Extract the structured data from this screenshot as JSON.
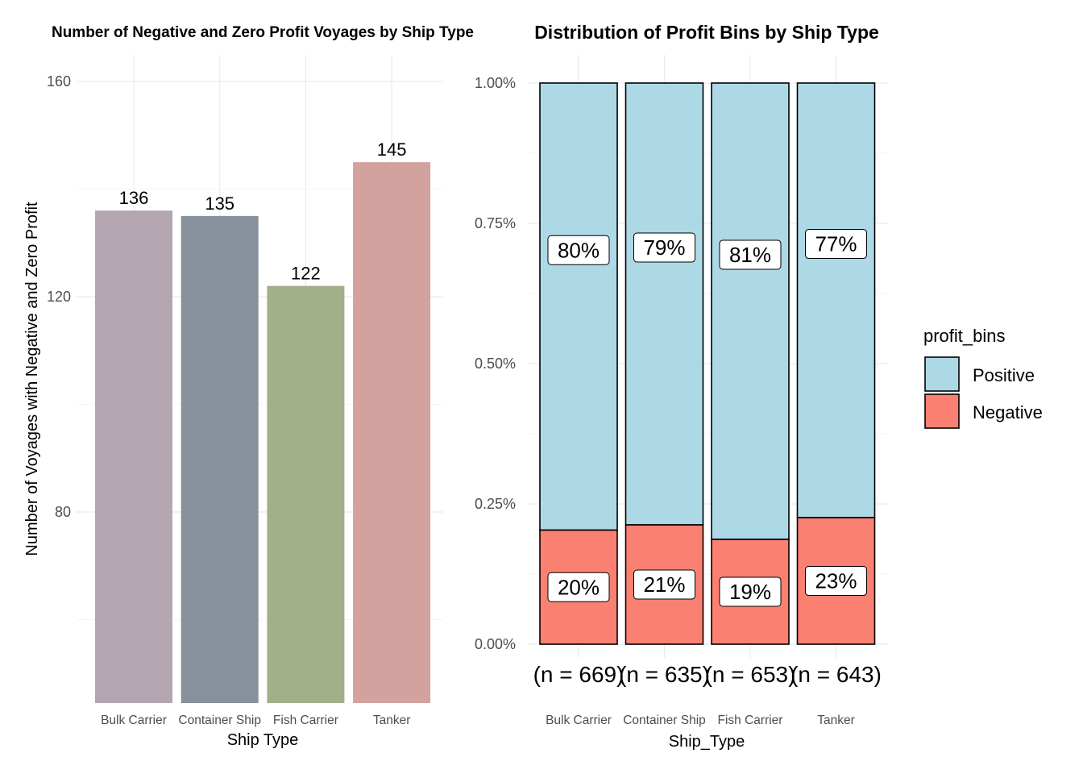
{
  "chart_data": [
    {
      "type": "bar",
      "title": "Number of Negative and Zero Profit Voyages by Ship Type",
      "xlabel": "Ship Type",
      "ylabel": "Number of Voyages with Negative and Zero Profit",
      "categories": [
        "Bulk Carrier",
        "Container Ship",
        "Fish Carrier",
        "Tanker"
      ],
      "values": [
        136,
        135,
        122,
        145
      ],
      "data_labels": [
        "136",
        "135",
        "122",
        "145"
      ],
      "colors": [
        "#b3a6b0",
        "#87919b",
        "#a1b088",
        "#d4a29e"
      ],
      "ylim": [
        56,
        162
      ],
      "yticks": [
        80,
        120,
        160
      ],
      "yticks_labels": [
        "80",
        "120",
        "160"
      ],
      "grid": true,
      "legend": "none"
    },
    {
      "type": "bar",
      "stacked": true,
      "title": "Distribution of Profit Bins by Ship Type",
      "xlabel": "Ship_Type",
      "ylabel": "",
      "categories": [
        "Bulk Carrier",
        "Container Ship",
        "Fish Carrier",
        "Tanker"
      ],
      "category_counts": [
        "(n = 669)",
        "(n = 635)",
        "(n = 653)",
        "(n = 643)"
      ],
      "series": [
        {
          "name": "Negative",
          "color": "#fa8072",
          "values": [
            0.2033,
            0.2126,
            0.1868,
            0.2255
          ],
          "labels": [
            "20%",
            "21%",
            "19%",
            "23%"
          ]
        },
        {
          "name": "Positive",
          "color": "#add8e6",
          "values": [
            0.7967,
            0.7874,
            0.8132,
            0.7745
          ],
          "labels": [
            "80%",
            "79%",
            "81%",
            "77%"
          ]
        }
      ],
      "ylim": [
        0,
        1
      ],
      "yticks": [
        0,
        0.25,
        0.5,
        0.75,
        1.0
      ],
      "yticks_labels": [
        "0.00%",
        "0.25%",
        "0.50%",
        "0.75%",
        "1.00%"
      ],
      "grid": true,
      "legend_title": "profit_bins",
      "legend_items": [
        "Positive",
        "Negative"
      ],
      "legend_placement": "right"
    }
  ]
}
